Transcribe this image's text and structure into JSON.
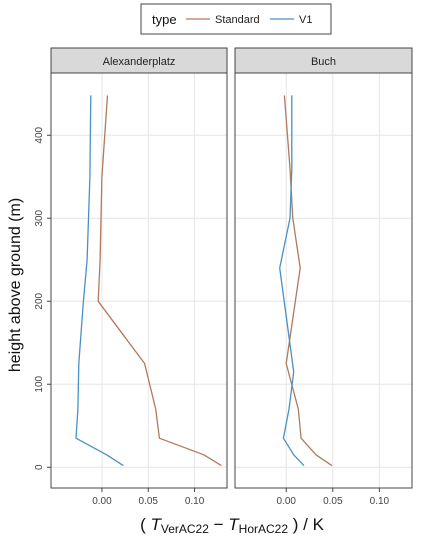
{
  "legend": {
    "title": "type",
    "items": [
      {
        "label": "Standard",
        "color": "#b07a5c"
      },
      {
        "label": "V1",
        "color": "#4a90c4"
      }
    ]
  },
  "chart_data": {
    "type": "line",
    "xlabel_main": "( ",
    "xlabel_T1": "T",
    "xlabel_sub1": "VerAC22",
    "xlabel_minus": " − ",
    "xlabel_T2": "T",
    "xlabel_sub2": "HorAC22",
    "xlabel_tail": " ) / K",
    "ylabel": "height above ground  (m)",
    "xlim": [
      -0.055,
      0.135
    ],
    "ylim": [
      -25,
      475
    ],
    "x_ticks": [
      0.0,
      0.05,
      0.1
    ],
    "x_tick_labels": [
      "0.00",
      "0.05",
      "0.10"
    ],
    "y_ticks": [
      0,
      100,
      200,
      300,
      400
    ],
    "y_tick_labels": [
      "0",
      "100",
      "200",
      "300",
      "400"
    ],
    "grid": true,
    "panels": [
      {
        "title": "Alexanderplatz",
        "series": [
          {
            "name": "Standard",
            "color": "#b07a5c",
            "x": [
              0.129,
              0.11,
              0.062,
              0.058,
              0.046,
              -0.004,
              -0.002,
              0.0,
              0.006
            ],
            "y": [
              2,
              15,
              35,
              70,
              125,
              200,
              250,
              350,
              448
            ]
          },
          {
            "name": "V1",
            "color": "#4a90c4",
            "x": [
              0.023,
              0.005,
              -0.028,
              -0.026,
              -0.025,
              -0.02,
              -0.016,
              -0.013,
              -0.012
            ],
            "y": [
              2,
              15,
              35,
              70,
              125,
              200,
              250,
              350,
              448
            ]
          }
        ]
      },
      {
        "title": "Buch",
        "series": [
          {
            "name": "Standard",
            "color": "#b07a5c",
            "x": [
              0.049,
              0.032,
              0.016,
              0.013,
              0.0,
              0.015,
              0.007,
              0.004,
              -0.002
            ],
            "y": [
              2,
              15,
              35,
              70,
              125,
              240,
              300,
              360,
              448
            ]
          },
          {
            "name": "V1",
            "color": "#4a90c4",
            "x": [
              0.019,
              0.008,
              -0.003,
              0.003,
              0.008,
              -0.007,
              0.004,
              0.006,
              0.006
            ],
            "y": [
              2,
              15,
              35,
              70,
              115,
              240,
              300,
              360,
              448
            ]
          }
        ]
      }
    ]
  }
}
